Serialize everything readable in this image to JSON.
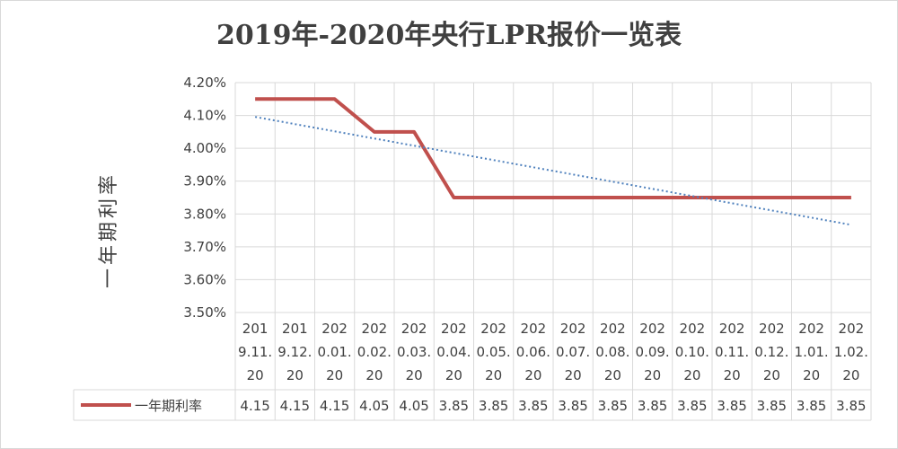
{
  "chart_data": {
    "type": "line",
    "title": "2019年-2020年央行LPR报价一览表",
    "ylabel": "一年期利率",
    "ylim": [
      3.5,
      4.2
    ],
    "yticks": [
      "4.20%",
      "4.10%",
      "4.00%",
      "3.90%",
      "3.80%",
      "3.70%",
      "3.60%",
      "3.50%"
    ],
    "categories": [
      [
        "201",
        "9.11.",
        "20"
      ],
      [
        "201",
        "9.12.",
        "20"
      ],
      [
        "202",
        "0.01.",
        "20"
      ],
      [
        "202",
        "0.02.",
        "20"
      ],
      [
        "202",
        "0.03.",
        "20"
      ],
      [
        "202",
        "0.04.",
        "20"
      ],
      [
        "202",
        "0.05.",
        "20"
      ],
      [
        "202",
        "0.06.",
        "20"
      ],
      [
        "202",
        "0.07.",
        "20"
      ],
      [
        "202",
        "0.08.",
        "20"
      ],
      [
        "202",
        "0.09.",
        "20"
      ],
      [
        "202",
        "0.10.",
        "20"
      ],
      [
        "202",
        "0.11.",
        "20"
      ],
      [
        "202",
        "0.12.",
        "20"
      ],
      [
        "202",
        "1.01.",
        "20"
      ],
      [
        "202",
        "1.02.",
        "20"
      ]
    ],
    "series": [
      {
        "name": "一年期利率",
        "color": "#c0504d",
        "values": [
          4.15,
          4.15,
          4.15,
          4.05,
          4.05,
          3.85,
          3.85,
          3.85,
          3.85,
          3.85,
          3.85,
          3.85,
          3.85,
          3.85,
          3.85,
          3.85
        ],
        "labels": [
          "4.15",
          "4.15",
          "4.15",
          "4.05",
          "4.05",
          "3.85",
          "3.85",
          "3.85",
          "3.85",
          "3.85",
          "3.85",
          "3.85",
          "3.85",
          "3.85",
          "3.85",
          "3.85"
        ]
      }
    ],
    "trendline": {
      "type": "linear",
      "color": "#4f81bd",
      "style": "dotted"
    },
    "grid": true,
    "data_table": true,
    "legend": "data-table"
  }
}
